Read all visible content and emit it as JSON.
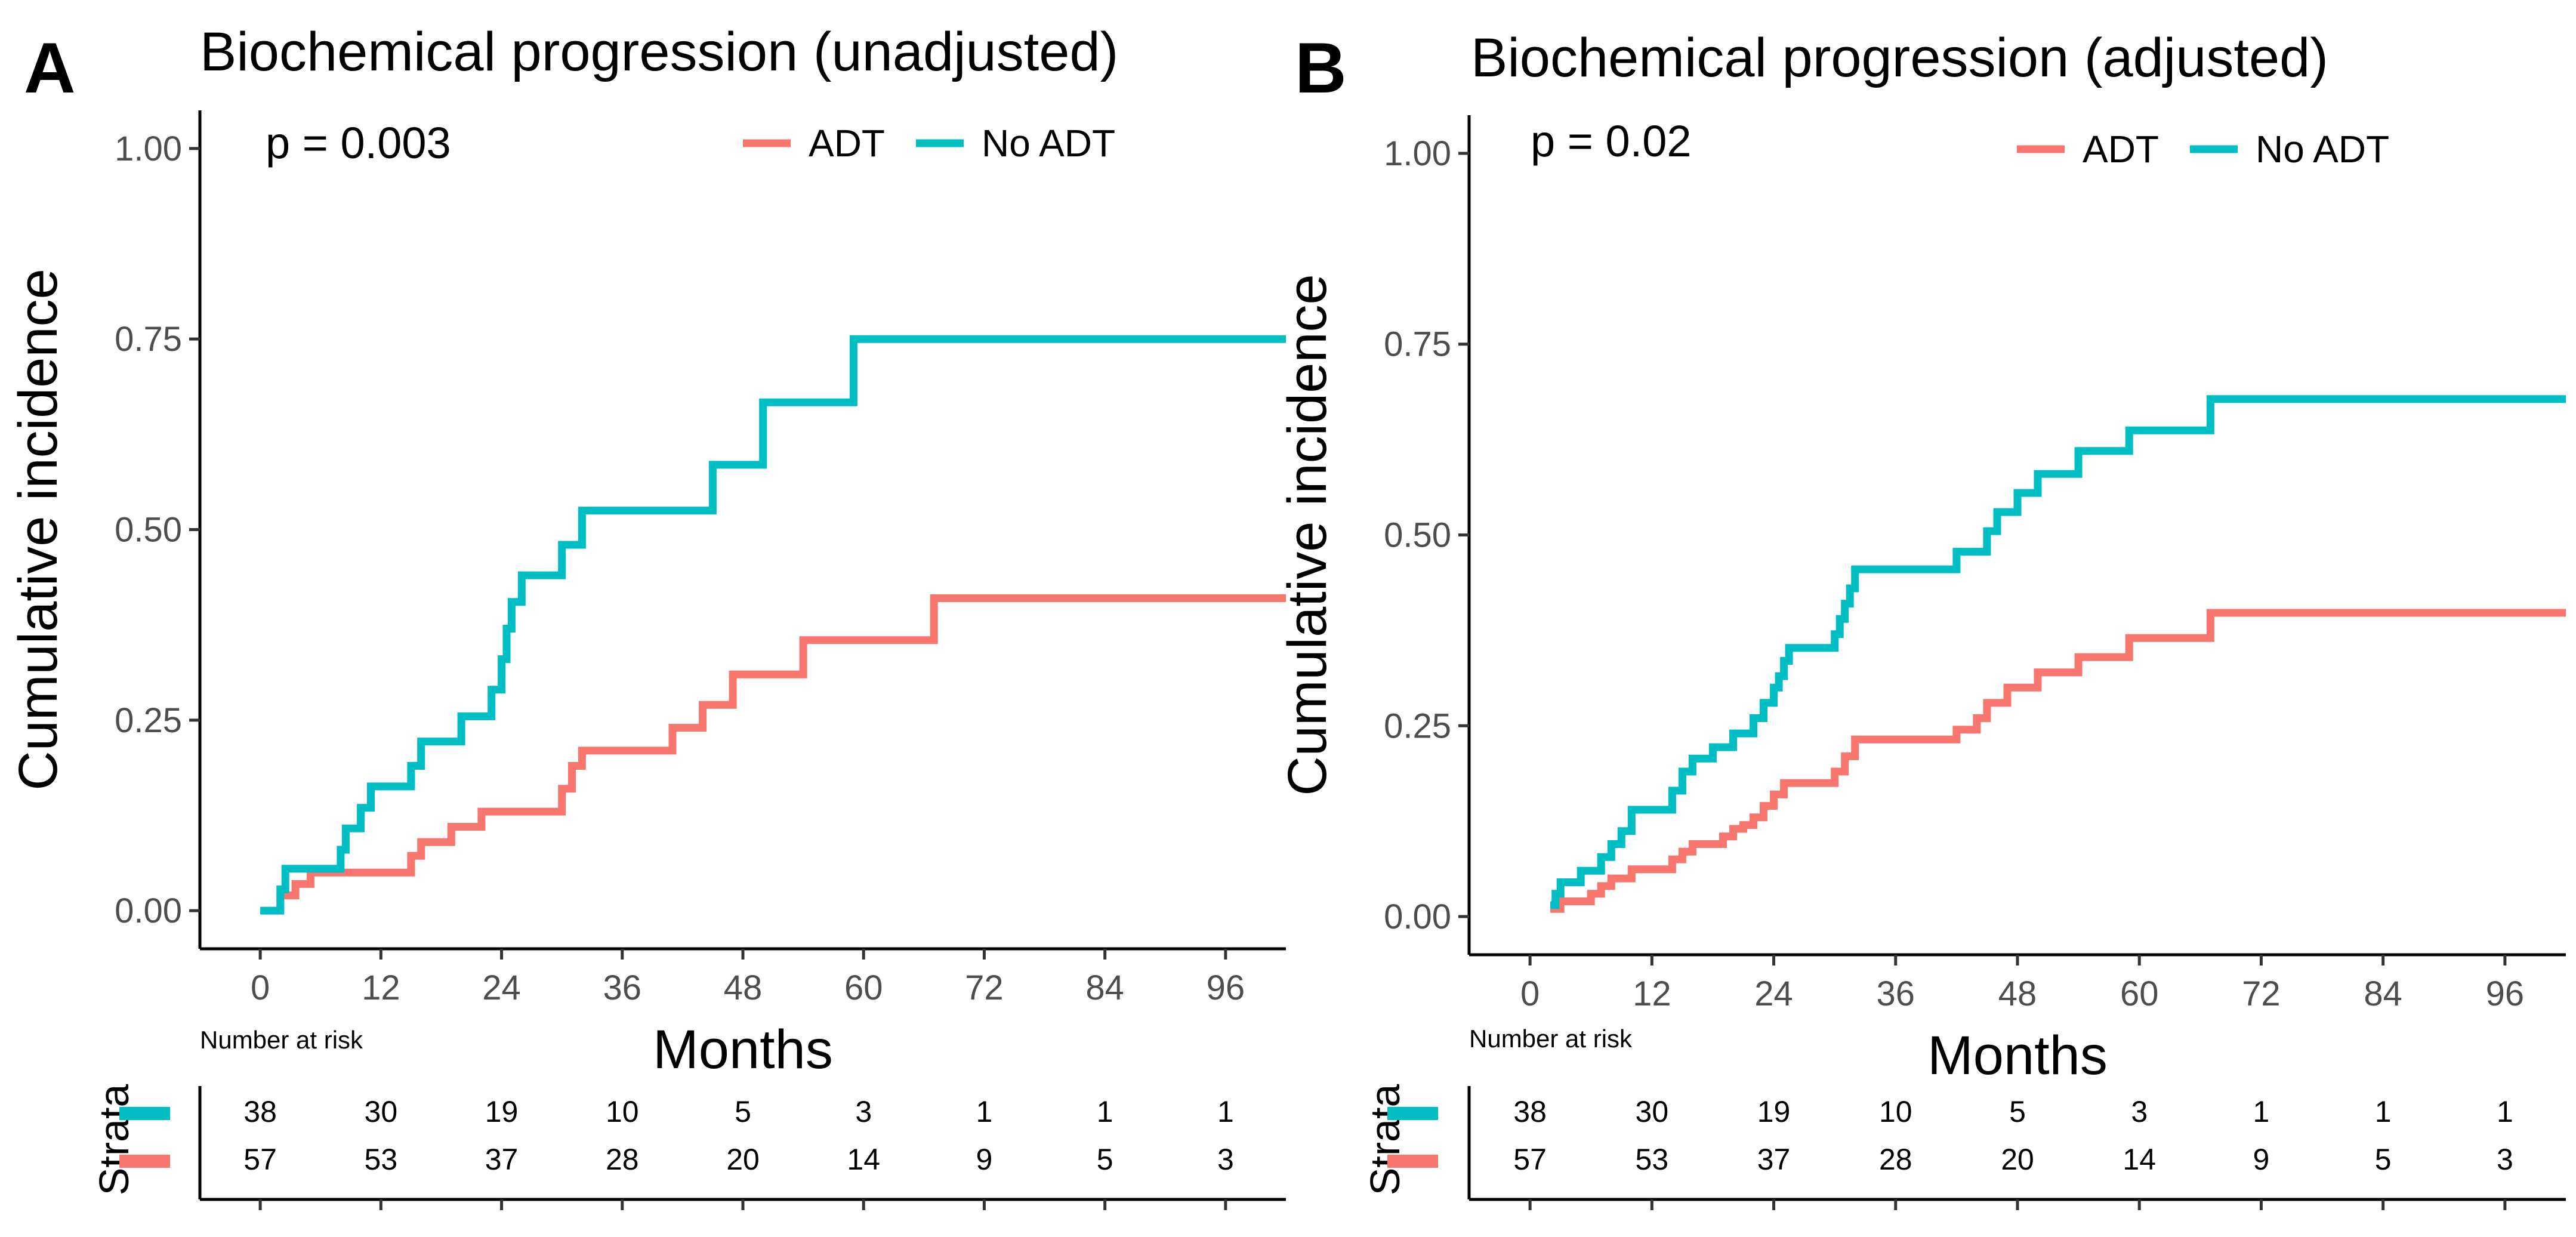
{
  "colors": {
    "adt": "#F8766D",
    "no_adt": "#00BFC4",
    "axis": "#000000"
  },
  "chart_data": [
    {
      "panel": "A",
      "type": "line",
      "title": "Biochemical progression (unadjusted)",
      "p_value_text": "p = 0.003",
      "xlabel": "Months",
      "ylabel": "Cumulative incidence",
      "xlim": [
        -6,
        102
      ],
      "ylim": [
        -0.05,
        1.05
      ],
      "x_ticks": [
        "0",
        "12",
        "24",
        "36",
        "48",
        "60",
        "72",
        "84",
        "96"
      ],
      "y_ticks": [
        "0.00",
        "0.25",
        "0.50",
        "0.75",
        "1.00"
      ],
      "legend": {
        "position": "top-right",
        "entries": [
          "ADT",
          "No ADT"
        ]
      },
      "series": [
        {
          "name": "ADT",
          "points": [
            [
              2,
              0
            ],
            [
              2,
              0.02
            ],
            [
              3.5,
              0.02
            ],
            [
              3.5,
              0.035
            ],
            [
              5,
              0.035
            ],
            [
              5,
              0.05
            ],
            [
              15,
              0.05
            ],
            [
              15,
              0.072
            ],
            [
              16,
              0.072
            ],
            [
              16,
              0.09
            ],
            [
              19,
              0.09
            ],
            [
              19,
              0.11
            ],
            [
              22,
              0.11
            ],
            [
              22,
              0.13
            ],
            [
              30,
              0.13
            ],
            [
              30,
              0.16
            ],
            [
              31,
              0.16
            ],
            [
              31,
              0.19
            ],
            [
              32,
              0.19
            ],
            [
              32,
              0.21
            ],
            [
              41,
              0.21
            ],
            [
              41,
              0.24
            ],
            [
              44,
              0.24
            ],
            [
              44,
              0.27
            ],
            [
              47,
              0.27
            ],
            [
              47,
              0.31
            ],
            [
              54,
              0.31
            ],
            [
              54,
              0.355
            ],
            [
              67,
              0.355
            ],
            [
              67,
              0.41
            ],
            [
              103,
              0.41
            ]
          ]
        },
        {
          "name": "No ADT",
          "points": [
            [
              0,
              0
            ],
            [
              2,
              0
            ],
            [
              2,
              0.028
            ],
            [
              2.5,
              0.028
            ],
            [
              2.5,
              0.055
            ],
            [
              8,
              0.055
            ],
            [
              8,
              0.08
            ],
            [
              8.5,
              0.08
            ],
            [
              8.5,
              0.108
            ],
            [
              10,
              0.108
            ],
            [
              10,
              0.135
            ],
            [
              11,
              0.135
            ],
            [
              11,
              0.163
            ],
            [
              15,
              0.163
            ],
            [
              15,
              0.19
            ],
            [
              16,
              0.19
            ],
            [
              16,
              0.222
            ],
            [
              20,
              0.222
            ],
            [
              20,
              0.255
            ],
            [
              23,
              0.255
            ],
            [
              23,
              0.29
            ],
            [
              24,
              0.29
            ],
            [
              24,
              0.33
            ],
            [
              24.5,
              0.33
            ],
            [
              24.5,
              0.37
            ],
            [
              25,
              0.37
            ],
            [
              25,
              0.405
            ],
            [
              26,
              0.405
            ],
            [
              26,
              0.44
            ],
            [
              30,
              0.44
            ],
            [
              30,
              0.48
            ],
            [
              32,
              0.48
            ],
            [
              32,
              0.525
            ],
            [
              45,
              0.525
            ],
            [
              45,
              0.585
            ],
            [
              50,
              0.585
            ],
            [
              50,
              0.667
            ],
            [
              59,
              0.667
            ],
            [
              59,
              0.75
            ],
            [
              103,
              0.75
            ]
          ]
        }
      ],
      "risk_table": {
        "title": "Number at risk",
        "strata_label": "Strata",
        "times": [
          0,
          12,
          24,
          36,
          48,
          60,
          72,
          84,
          96
        ],
        "rows": [
          {
            "name": "No ADT",
            "values": [
              "38",
              "30",
              "19",
              "10",
              "5",
              "3",
              "1",
              "1",
              "1"
            ]
          },
          {
            "name": "ADT",
            "values": [
              "57",
              "53",
              "37",
              "28",
              "20",
              "14",
              "9",
              "5",
              "3"
            ]
          }
        ]
      }
    },
    {
      "panel": "B",
      "type": "line",
      "title": "Biochemical progression (adjusted)",
      "p_value_text": "p = 0.02",
      "xlabel": "Months",
      "ylabel": "Cumulative incidence",
      "xlim": [
        -6,
        102
      ],
      "ylim": [
        -0.05,
        1.05
      ],
      "x_ticks": [
        "0",
        "12",
        "24",
        "36",
        "48",
        "60",
        "72",
        "84",
        "96"
      ],
      "y_ticks": [
        "0.00",
        "0.25",
        "0.50",
        "0.75",
        "1.00"
      ],
      "legend": {
        "position": "top-right",
        "entries": [
          "ADT",
          "No ADT"
        ]
      },
      "series": [
        {
          "name": "ADT",
          "points": [
            [
              2,
              0.01
            ],
            [
              3,
              0.01
            ],
            [
              3,
              0.02
            ],
            [
              6,
              0.02
            ],
            [
              6,
              0.03
            ],
            [
              7,
              0.03
            ],
            [
              7,
              0.04
            ],
            [
              8,
              0.04
            ],
            [
              8,
              0.05
            ],
            [
              10,
              0.05
            ],
            [
              10,
              0.062
            ],
            [
              14,
              0.062
            ],
            [
              14,
              0.075
            ],
            [
              15,
              0.075
            ],
            [
              15,
              0.085
            ],
            [
              16,
              0.085
            ],
            [
              16,
              0.095
            ],
            [
              19,
              0.095
            ],
            [
              19,
              0.105
            ],
            [
              20,
              0.105
            ],
            [
              20,
              0.115
            ],
            [
              21,
              0.115
            ],
            [
              21,
              0.12
            ],
            [
              22,
              0.12
            ],
            [
              22,
              0.13
            ],
            [
              23,
              0.13
            ],
            [
              23,
              0.145
            ],
            [
              24,
              0.145
            ],
            [
              24,
              0.16
            ],
            [
              25,
              0.16
            ],
            [
              25,
              0.175
            ],
            [
              30,
              0.175
            ],
            [
              30,
              0.19
            ],
            [
              31,
              0.19
            ],
            [
              31,
              0.21
            ],
            [
              32,
              0.21
            ],
            [
              32,
              0.232
            ],
            [
              42,
              0.232
            ],
            [
              42,
              0.245
            ],
            [
              44,
              0.245
            ],
            [
              44,
              0.26
            ],
            [
              45,
              0.26
            ],
            [
              45,
              0.28
            ],
            [
              47,
              0.28
            ],
            [
              47,
              0.3
            ],
            [
              50,
              0.3
            ],
            [
              50,
              0.32
            ],
            [
              54,
              0.32
            ],
            [
              54,
              0.34
            ],
            [
              59,
              0.34
            ],
            [
              59,
              0.365
            ],
            [
              67,
              0.365
            ],
            [
              67,
              0.398
            ],
            [
              103,
              0.398
            ]
          ]
        },
        {
          "name": "No ADT",
          "points": [
            [
              2,
              0.015
            ],
            [
              2.5,
              0.015
            ],
            [
              2.5,
              0.03
            ],
            [
              3,
              0.03
            ],
            [
              3,
              0.045
            ],
            [
              5,
              0.045
            ],
            [
              5,
              0.06
            ],
            [
              7,
              0.06
            ],
            [
              7,
              0.078
            ],
            [
              8,
              0.078
            ],
            [
              8,
              0.095
            ],
            [
              9,
              0.095
            ],
            [
              9,
              0.112
            ],
            [
              10,
              0.112
            ],
            [
              10,
              0.14
            ],
            [
              14,
              0.14
            ],
            [
              14,
              0.165
            ],
            [
              15,
              0.165
            ],
            [
              15,
              0.19
            ],
            [
              16,
              0.19
            ],
            [
              16,
              0.207
            ],
            [
              18,
              0.207
            ],
            [
              18,
              0.222
            ],
            [
              20,
              0.222
            ],
            [
              20,
              0.24
            ],
            [
              22,
              0.24
            ],
            [
              22,
              0.26
            ],
            [
              23,
              0.26
            ],
            [
              23,
              0.28
            ],
            [
              24,
              0.28
            ],
            [
              24,
              0.3
            ],
            [
              24.5,
              0.3
            ],
            [
              24.5,
              0.315
            ],
            [
              25,
              0.315
            ],
            [
              25,
              0.335
            ],
            [
              25.5,
              0.335
            ],
            [
              25.5,
              0.352
            ],
            [
              30,
              0.352
            ],
            [
              30,
              0.37
            ],
            [
              30.5,
              0.37
            ],
            [
              30.5,
              0.39
            ],
            [
              31,
              0.39
            ],
            [
              31,
              0.41
            ],
            [
              31.5,
              0.41
            ],
            [
              31.5,
              0.43
            ],
            [
              32,
              0.43
            ],
            [
              32,
              0.455
            ],
            [
              42,
              0.455
            ],
            [
              42,
              0.478
            ],
            [
              45,
              0.478
            ],
            [
              45,
              0.505
            ],
            [
              46,
              0.505
            ],
            [
              46,
              0.53
            ],
            [
              48,
              0.53
            ],
            [
              48,
              0.555
            ],
            [
              50,
              0.555
            ],
            [
              50,
              0.58
            ],
            [
              54,
              0.58
            ],
            [
              54,
              0.61
            ],
            [
              59,
              0.61
            ],
            [
              59,
              0.637
            ],
            [
              67,
              0.637
            ],
            [
              67,
              0.678
            ],
            [
              103,
              0.678
            ]
          ]
        }
      ],
      "risk_table": {
        "title": "Number at risk",
        "strata_label": "Strata",
        "times": [
          0,
          12,
          24,
          36,
          48,
          60,
          72,
          84,
          96
        ],
        "rows": [
          {
            "name": "No ADT",
            "values": [
              "38",
              "30",
              "19",
              "10",
              "5",
              "3",
              "1",
              "1",
              "1"
            ]
          },
          {
            "name": "ADT",
            "values": [
              "57",
              "53",
              "37",
              "28",
              "20",
              "14",
              "9",
              "5",
              "3"
            ]
          }
        ]
      }
    }
  ]
}
